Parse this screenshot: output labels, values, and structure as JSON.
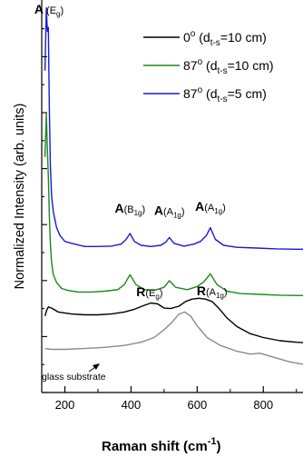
{
  "chart_data": {
    "type": "line",
    "xlabel_main": "Raman shift (cm",
    "xlabel_sup": "-1",
    "xlabel_end": ")",
    "ylabel": "Normalized Intensity (arb. units)",
    "xlim": [
      130,
      920
    ],
    "ylim": [
      0,
      1
    ],
    "xticks": [
      200,
      400,
      600,
      800
    ],
    "xtick_labels": [
      "200",
      "400",
      "600",
      "800"
    ],
    "legend": {
      "position": "top-right",
      "entries": [
        {
          "main": "0",
          "sup": "o",
          "mid": " (d",
          "sub": "t-s",
          "tail": "=10 cm)",
          "color": "#000000"
        },
        {
          "main": "87",
          "sup": "o",
          "mid": " (d",
          "sub": "t-s",
          "tail": "=10 cm)",
          "color": "#1a8a1a"
        },
        {
          "main": "87",
          "sup": "o",
          "mid": " (d",
          "sub": "t-s",
          "tail": "=5 cm)",
          "color": "#1a1ad6"
        }
      ]
    },
    "annotations": [
      {
        "bold": "A",
        "paren": " (E",
        "sub": "g",
        "close": ")",
        "x": 152,
        "y": 0.965
      },
      {
        "bold": "A",
        "paren": "(B",
        "sub": "1g",
        "close": ")",
        "x": 397,
        "y": 0.458
      },
      {
        "bold": "A",
        "paren": "(A",
        "sub": "1g",
        "close": ")",
        "x": 516,
        "y": 0.453
      },
      {
        "bold": "A",
        "paren": "(A",
        "sub": "1g",
        "close": ")",
        "x": 640,
        "y": 0.463
      },
      {
        "bold": "R",
        "paren": "(E",
        "sub": "g",
        "close": ")",
        "x": 456,
        "y": 0.245
      },
      {
        "bold": "R",
        "paren": "(A",
        "sub": "1g",
        "close": ")",
        "x": 645,
        "y": 0.248
      }
    ],
    "substrate_label": "glass substrate",
    "series": [
      {
        "color": "#1a1ad6",
        "x": [
          140,
          144,
          147,
          150,
          153,
          156,
          160,
          165,
          175,
          185,
          200,
          220,
          260,
          300,
          340,
          370,
          385,
          397,
          410,
          430,
          460,
          490,
          505,
          516,
          530,
          560,
          590,
          610,
          628,
          640,
          655,
          680,
          720,
          780,
          840,
          900,
          920
        ],
        "y": [
          0.82,
          0.98,
          0.92,
          0.93,
          0.72,
          0.58,
          0.5,
          0.46,
          0.42,
          0.4,
          0.385,
          0.38,
          0.372,
          0.372,
          0.373,
          0.378,
          0.39,
          0.405,
          0.385,
          0.375,
          0.372,
          0.375,
          0.383,
          0.395,
          0.38,
          0.373,
          0.378,
          0.385,
          0.4,
          0.42,
          0.39,
          0.375,
          0.37,
          0.368,
          0.366,
          0.365,
          0.365
        ]
      },
      {
        "color": "#1a8a1a",
        "x": [
          140,
          144,
          147,
          150,
          153,
          156,
          160,
          165,
          175,
          190,
          210,
          240,
          280,
          320,
          360,
          380,
          397,
          415,
          440,
          470,
          500,
          516,
          535,
          570,
          600,
          620,
          640,
          660,
          690,
          730,
          790,
          850,
          920
        ],
        "y": [
          0.6,
          0.71,
          0.62,
          0.55,
          0.45,
          0.38,
          0.33,
          0.3,
          0.28,
          0.265,
          0.26,
          0.256,
          0.256,
          0.258,
          0.262,
          0.275,
          0.3,
          0.275,
          0.262,
          0.26,
          0.268,
          0.285,
          0.268,
          0.262,
          0.27,
          0.282,
          0.302,
          0.275,
          0.258,
          0.252,
          0.25,
          0.248,
          0.247
        ]
      },
      {
        "color": "#000000",
        "x": [
          140,
          145,
          150,
          160,
          180,
          220,
          260,
          300,
          340,
          380,
          410,
          440,
          460,
          480,
          500,
          520,
          545,
          565,
          585,
          605,
          625,
          645,
          665,
          690,
          720,
          760,
          800,
          850,
          900,
          920
        ],
        "y": [
          0.195,
          0.21,
          0.218,
          0.215,
          0.205,
          0.2,
          0.198,
          0.198,
          0.2,
          0.205,
          0.212,
          0.222,
          0.228,
          0.226,
          0.215,
          0.214,
          0.22,
          0.232,
          0.238,
          0.24,
          0.238,
          0.232,
          0.215,
          0.19,
          0.168,
          0.15,
          0.14,
          0.132,
          0.128,
          0.127
        ]
      },
      {
        "color": "#8a8a8a",
        "x": [
          140,
          160,
          200,
          260,
          320,
          380,
          430,
          470,
          500,
          525,
          545,
          562,
          580,
          600,
          630,
          670,
          720,
          760,
          790,
          830,
          880,
          920
        ],
        "y": [
          0.112,
          0.11,
          0.11,
          0.112,
          0.115,
          0.12,
          0.128,
          0.14,
          0.16,
          0.18,
          0.2,
          0.205,
          0.195,
          0.17,
          0.14,
          0.12,
          0.105,
          0.098,
          0.1,
          0.09,
          0.078,
          0.072
        ]
      }
    ]
  }
}
